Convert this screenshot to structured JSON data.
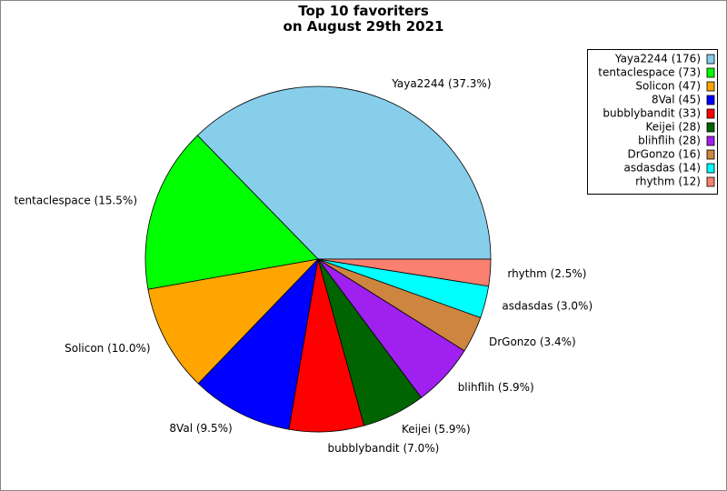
{
  "chart_data": {
    "type": "pie",
    "title": "Top 10 favoriters\non August 29th 2021",
    "categories": [
      "Yaya2244 (176)",
      "tentaclespace (73)",
      "Solicon (47)",
      "8Val (45)",
      "bubblybandit (33)",
      "Keijei (28)",
      "blihflih (28)",
      "DrGonzo (16)",
      "asdasdas (14)",
      "rhythm (12)"
    ],
    "values": [
      37.3,
      15.5,
      10.0,
      9.5,
      7.0,
      5.9,
      5.9,
      3.4,
      3.0,
      2.5
    ],
    "value_labels": [
      "Yaya2244 (37.3%)",
      "tentaclespace (15.5%)",
      "Solicon (10.0%)",
      "8Val (9.5%)",
      "bubblybandit (7.0%)",
      "Keijei (5.9%)",
      "blihflih (5.9%)",
      "DrGonzo (3.4%)",
      "asdasdas (3.0%)",
      "rhythm (2.5%)"
    ],
    "colors": [
      "#87ceeb",
      "#00ff00",
      "#ffa500",
      "#0000ff",
      "#ff0000",
      "#006400",
      "#a020f0",
      "#cd853f",
      "#00ffff",
      "#fa8072"
    ],
    "legend": "upper right"
  }
}
